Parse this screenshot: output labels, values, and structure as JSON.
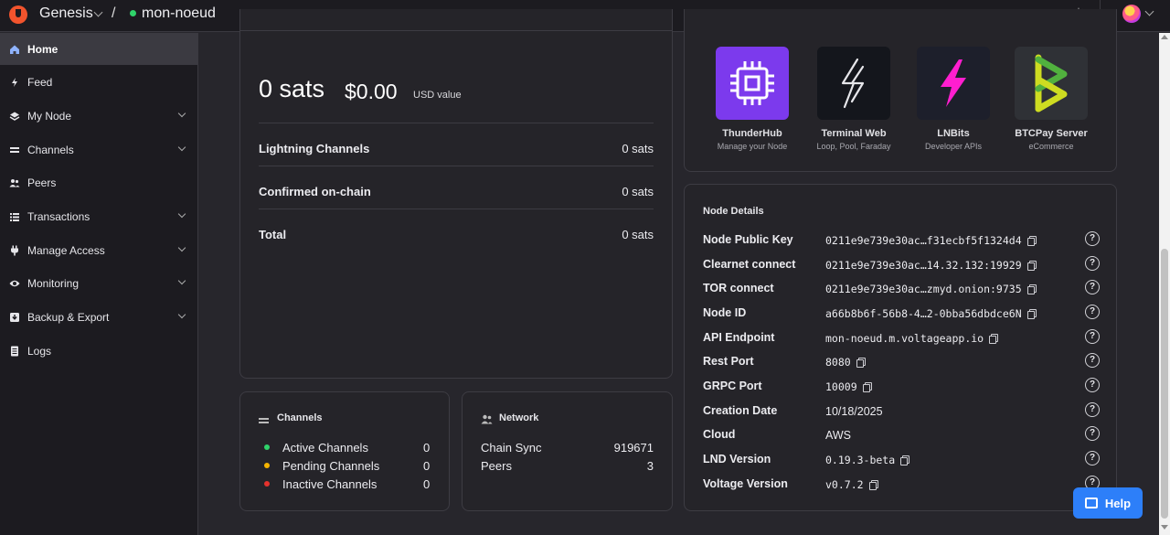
{
  "topbar": {
    "org_name": "Genesis",
    "separator": "/",
    "node_name": "mon-noeud",
    "theme_icon": "sun-icon",
    "avatar_icon": "avatar"
  },
  "sidebar": {
    "items": [
      {
        "label": "Home",
        "icon": "home-icon",
        "active": true
      },
      {
        "label": "Feed",
        "icon": "bolt-icon"
      },
      {
        "label": "My Node",
        "icon": "node-icon",
        "expandable": true
      },
      {
        "label": "Channels",
        "icon": "channels-icon",
        "expandable": true
      },
      {
        "label": "Peers",
        "icon": "peers-icon"
      },
      {
        "label": "Transactions",
        "icon": "list-icon",
        "expandable": true
      },
      {
        "label": "Manage Access",
        "icon": "plug-icon",
        "expandable": true
      },
      {
        "label": "Monitoring",
        "icon": "eye-icon",
        "expandable": true
      },
      {
        "label": "Backup & Export",
        "icon": "download-icon",
        "expandable": true
      },
      {
        "label": "Logs",
        "icon": "document-icon"
      }
    ]
  },
  "balance": {
    "amount": "0 sats",
    "usd": "$0.00",
    "usd_label": "USD value",
    "rows": [
      {
        "label": "Lightning Channels",
        "value": "0 sats"
      },
      {
        "label": "Confirmed on-chain",
        "value": "0 sats"
      },
      {
        "label": "Total",
        "value": "0 sats"
      }
    ]
  },
  "channels_card": {
    "title": "Channels",
    "rows": [
      {
        "label": "Active Channels",
        "value": "0",
        "color": "#2fd36a"
      },
      {
        "label": "Pending Channels",
        "value": "0",
        "color": "#f5b400"
      },
      {
        "label": "Inactive Channels",
        "value": "0",
        "color": "#e5322d"
      }
    ]
  },
  "network_card": {
    "title": "Network",
    "rows": [
      {
        "label": "Chain Sync",
        "value": "919671"
      },
      {
        "label": "Peers",
        "value": "3"
      }
    ]
  },
  "apps": [
    {
      "name": "ThunderHub",
      "subtitle": "Manage your Node",
      "icon": "chip-icon",
      "color": "#7c3aed"
    },
    {
      "name": "Terminal Web",
      "subtitle": "Loop, Pool, Faraday",
      "icon": "lightning-outline-icon",
      "color": "#14161c"
    },
    {
      "name": "LNBits",
      "subtitle": "Developer APIs",
      "icon": "lightning-icon",
      "color": "#1d1f2b"
    },
    {
      "name": "BTCPay Server",
      "subtitle": "eCommerce",
      "icon": "btcpay-icon",
      "color": "#2f3136"
    }
  ],
  "node_details": {
    "title": "Node Details",
    "rows": [
      {
        "label": "Node Public Key",
        "value": "0211e9e739e30ac…f31ecbf5f1324d4",
        "mono": true,
        "copy": true
      },
      {
        "label": "Clearnet connect",
        "value": "0211e9e739e30ac…14.32.132:19929",
        "mono": true,
        "copy": true
      },
      {
        "label": "TOR connect",
        "value": "0211e9e739e30ac…zmyd.onion:9735",
        "mono": true,
        "copy": true
      },
      {
        "label": "Node ID",
        "value": "a66b8b6f-56b8-4…2-0bba56dbdce6N",
        "mono": true,
        "copy": true
      },
      {
        "label": "API Endpoint",
        "value": "mon-noeud.m.voltageapp.io",
        "mono": true,
        "copy": true
      },
      {
        "label": "Rest Port",
        "value": "8080",
        "mono": true,
        "copy": true
      },
      {
        "label": "GRPC Port",
        "value": "10009",
        "mono": true,
        "copy": true
      },
      {
        "label": "Creation Date",
        "value": "10/18/2025",
        "mono": false,
        "copy": false
      },
      {
        "label": "Cloud",
        "value": "AWS",
        "mono": false,
        "copy": false
      },
      {
        "label": "LND Version",
        "value": "0.19.3-beta",
        "mono": true,
        "copy": true
      },
      {
        "label": "Voltage Version",
        "value": "v0.7.2",
        "mono": true,
        "copy": true
      }
    ]
  },
  "help_button": {
    "label": "Help"
  }
}
